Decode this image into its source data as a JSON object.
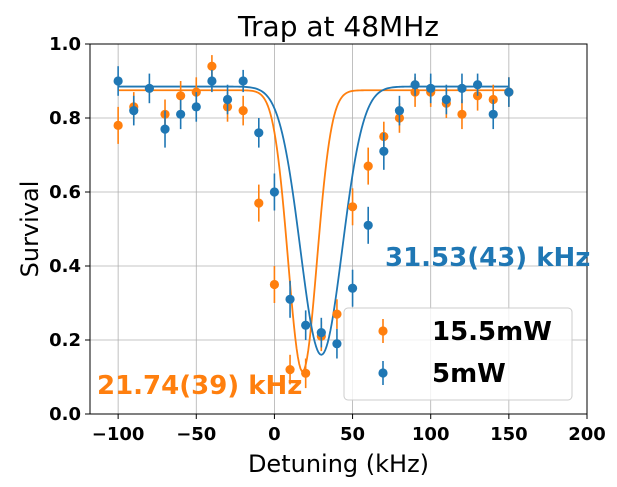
{
  "chart_data": {
    "type": "scatter",
    "title": "Trap at 48MHz",
    "xlabel": "Detuning (kHz)",
    "ylabel": "Survival",
    "xlim": [
      -118,
      200
    ],
    "ylim": [
      0,
      1.0
    ],
    "xticks": [
      -100,
      -50,
      0,
      50,
      100,
      150,
      200
    ],
    "yticks": [
      0.0,
      0.2,
      0.4,
      0.6,
      0.8,
      1.0
    ],
    "xtick_labels": [
      "−100",
      "−50",
      "0",
      "50",
      "100",
      "150",
      "200"
    ],
    "ytick_labels": [
      "0.0",
      "0.2",
      "0.4",
      "0.6",
      "0.8",
      "1.0"
    ],
    "grid": true,
    "legend_position": "lower-right",
    "series": [
      {
        "name": "15.5mW",
        "color": "#ff7f0e",
        "x": [
          -100,
          -90,
          -70,
          -60,
          -50,
          -40,
          -30,
          -20,
          -10,
          0,
          10,
          20,
          30,
          40,
          50,
          60,
          70,
          80,
          90,
          100,
          110,
          120,
          130,
          140,
          150
        ],
        "y": [
          0.78,
          0.83,
          0.81,
          0.86,
          0.87,
          0.94,
          0.83,
          0.82,
          0.57,
          0.35,
          0.12,
          0.11,
          0.21,
          0.27,
          0.56,
          0.67,
          0.75,
          0.8,
          0.87,
          0.87,
          0.84,
          0.81,
          0.86,
          0.85,
          0.87
        ],
        "err": [
          0.05,
          0.04,
          0.04,
          0.04,
          0.04,
          0.03,
          0.04,
          0.04,
          0.05,
          0.05,
          0.04,
          0.04,
          0.04,
          0.04,
          0.05,
          0.05,
          0.04,
          0.04,
          0.04,
          0.04,
          0.04,
          0.04,
          0.04,
          0.04,
          0.04
        ],
        "fit": {
          "baseline": 0.875,
          "min": 0.115,
          "center": 18,
          "fwhm": 21.74
        },
        "annotation": "21.74(39) kHz"
      },
      {
        "name": "5mW",
        "color": "#1f77b4",
        "x": [
          -100,
          -90,
          -80,
          -70,
          -60,
          -50,
          -40,
          -30,
          -20,
          -10,
          0,
          10,
          20,
          30,
          40,
          50,
          60,
          70,
          80,
          90,
          100,
          110,
          120,
          130,
          140,
          150
        ],
        "y": [
          0.9,
          0.82,
          0.88,
          0.77,
          0.81,
          0.83,
          0.9,
          0.85,
          0.9,
          0.76,
          0.6,
          0.31,
          0.24,
          0.22,
          0.19,
          0.34,
          0.51,
          0.71,
          0.82,
          0.89,
          0.88,
          0.85,
          0.88,
          0.89,
          0.81,
          0.87
        ],
        "err": [
          0.04,
          0.04,
          0.04,
          0.05,
          0.04,
          0.04,
          0.03,
          0.04,
          0.03,
          0.04,
          0.05,
          0.05,
          0.04,
          0.04,
          0.04,
          0.05,
          0.05,
          0.05,
          0.04,
          0.03,
          0.04,
          0.04,
          0.04,
          0.03,
          0.04,
          0.04
        ],
        "fit": {
          "baseline": 0.885,
          "min": 0.16,
          "center": 30,
          "fwhm": 31.53
        },
        "annotation": "31.53(43) kHz"
      }
    ]
  }
}
